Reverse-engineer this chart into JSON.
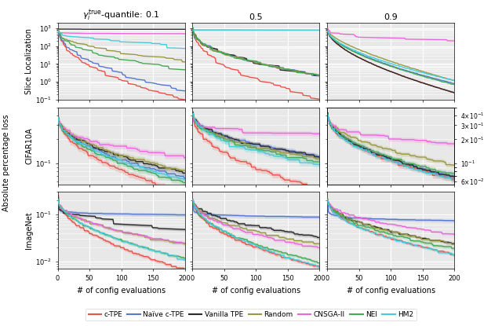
{
  "col_titles": [
    "$\\gamma_i^{\\mathrm{true}}$-quantile: 0.1",
    "0.5",
    "0.9"
  ],
  "row_labels": [
    "Slice Localization",
    "CIFAR10A",
    "ImageNet"
  ],
  "xlabel": "# of config evaluations",
  "ylabel_abs": "Absolute percentage loss",
  "methods": [
    "c-TPE",
    "Naïve c-TPE",
    "Vanilla TPE",
    "Random",
    "CNSGA-II",
    "NEI",
    "HM2"
  ],
  "colors": [
    "#e8534a",
    "#5577cc",
    "#2b2b2b",
    "#999944",
    "#ee66dd",
    "#44aa55",
    "#44ccdd"
  ],
  "xlim": [
    0,
    200
  ],
  "xticks": [
    0,
    50,
    100,
    150,
    200
  ],
  "figsize": [
    6.4,
    4.15
  ],
  "dpi": 100,
  "panel_bg": "#e8e8e8",
  "sl_ylim": [
    0.1,
    2000.0
  ],
  "cf_ylim": [
    0.055,
    0.5
  ],
  "im_ylim": [
    0.007,
    0.3
  ]
}
